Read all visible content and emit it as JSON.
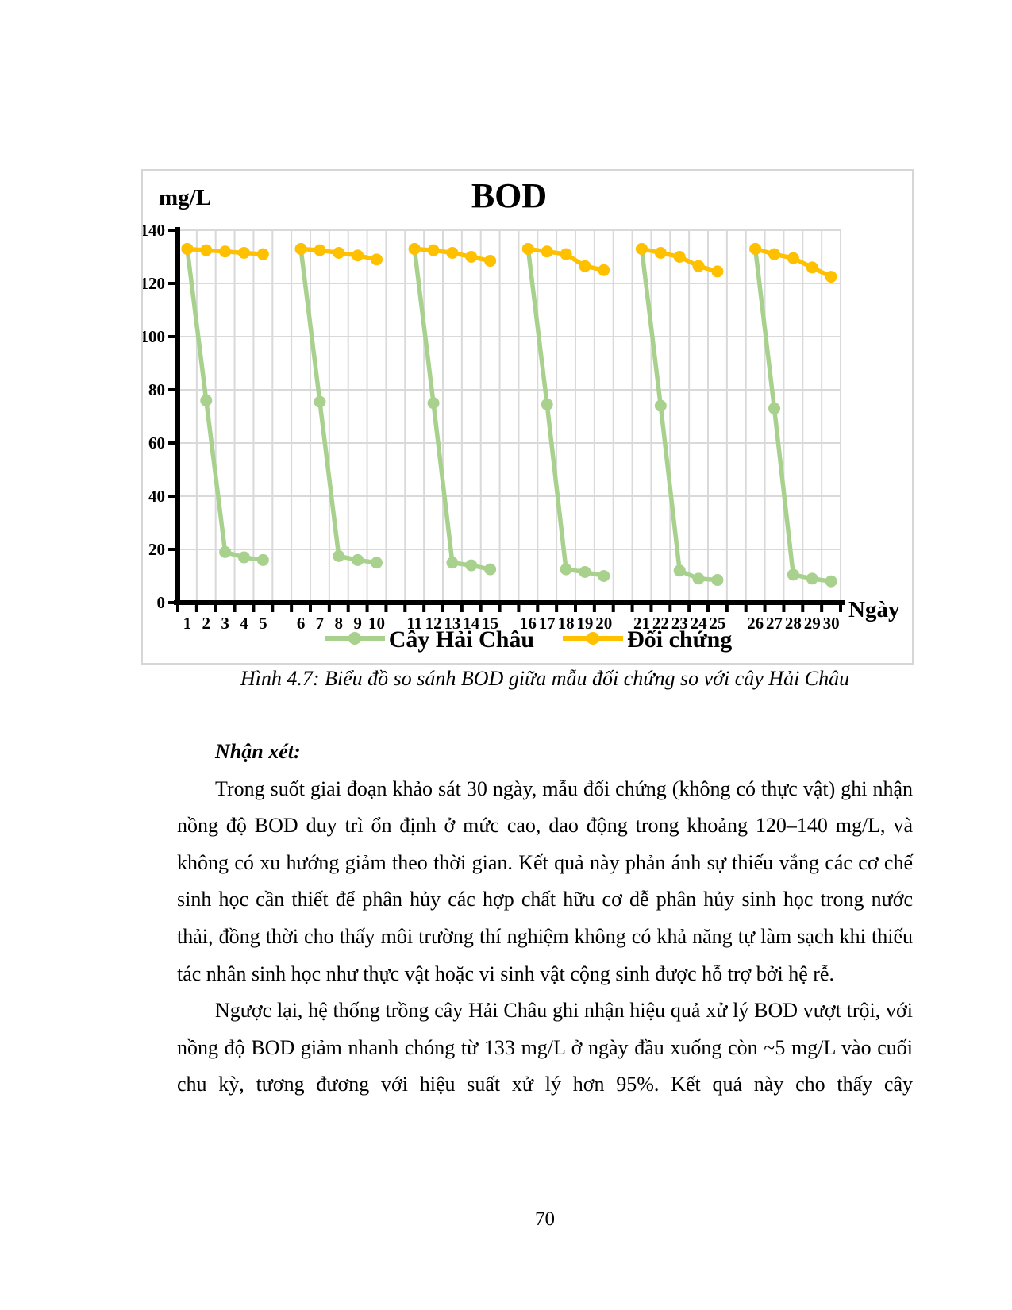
{
  "page": {
    "number": "70"
  },
  "figure": {
    "caption": "Hình 4.7: Biểu đồ so sánh BOD giữa mẫu đối chứng so với cây Hải Châu"
  },
  "chart_data": {
    "type": "line",
    "title": "BOD",
    "ylabel": "mg/L",
    "xlabel": "Ngày",
    "ylim": [
      0,
      140
    ],
    "ytick_step": 20,
    "grid": true,
    "grid_color": "#d9d9d9",
    "axis_color": "#000000",
    "legend_position": "bottom",
    "group_size": 5,
    "categories": [
      1,
      2,
      3,
      4,
      5,
      6,
      7,
      8,
      9,
      10,
      11,
      12,
      13,
      14,
      15,
      16,
      17,
      18,
      19,
      20,
      21,
      22,
      23,
      24,
      25,
      26,
      27,
      28,
      29,
      30
    ],
    "series": [
      {
        "name": "Cây Hải Châu",
        "color": "#a9d18e",
        "values": [
          133,
          76,
          19,
          17,
          16,
          133,
          75.5,
          17.5,
          16,
          15,
          133,
          75,
          15,
          14,
          12.5,
          133,
          74.5,
          12.5,
          11.5,
          10,
          133,
          74,
          12,
          9,
          8.5,
          133,
          73,
          10.5,
          9,
          8
        ]
      },
      {
        "name": "Đối chứng",
        "color": "#ffc000",
        "values": [
          133,
          132.5,
          132,
          131.5,
          131,
          133,
          132.5,
          131.5,
          130.5,
          129,
          133,
          132.5,
          131.5,
          130,
          128.5,
          133,
          132,
          131,
          126.5,
          125,
          133,
          131.5,
          130,
          126.5,
          124.5,
          133,
          131,
          129.5,
          126,
          122.5
        ]
      }
    ]
  },
  "content": {
    "heading": "Nhận xét:",
    "paragraphs": [
      "Trong suốt giai đoạn khảo sát 30 ngày, mẫu đối chứng (không có thực vật) ghi nhận nồng độ BOD duy trì ổn định ở mức cao, dao động trong khoảng 120–140 mg/L, và không có xu hướng giảm theo thời gian. Kết quả này phản ánh sự thiếu vắng các cơ chế sinh học cần thiết để phân hủy các hợp chất hữu cơ dễ phân hủy sinh học trong nước thải, đồng thời cho thấy môi trường thí nghiệm không có khả năng tự làm sạch khi thiếu tác nhân sinh học như thực vật hoặc vi sinh vật cộng sinh được hỗ trợ bởi hệ rễ.",
      "Ngược lại, hệ thống trồng cây Hải Châu ghi nhận hiệu quả xử lý BOD vượt trội, với nồng độ BOD giảm nhanh chóng từ 133 mg/L ở ngày đầu xuống còn ~5 mg/L vào cuối chu kỳ, tương đương với hiệu suất xử lý hơn 95%. Kết quả này cho thấy cây"
    ]
  }
}
